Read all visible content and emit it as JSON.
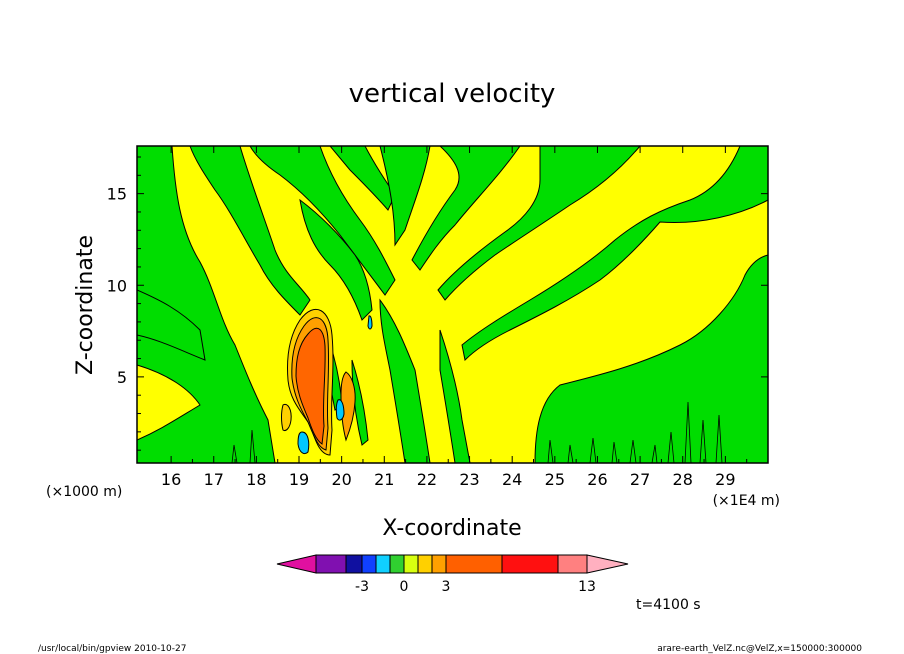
{
  "chart_data": {
    "type": "heatmap",
    "title": "vertical velocity",
    "xlabel": "X-coordinate",
    "ylabel": "Z-coordinate",
    "x_unit_left": "(×1000 m)",
    "x_unit_right": "(×1E4 m)",
    "x_ticks": [
      "16",
      "17",
      "18",
      "19",
      "20",
      "21",
      "22",
      "23",
      "24",
      "25",
      "26",
      "27",
      "28",
      "29"
    ],
    "y_ticks": [
      "5",
      "10",
      "15"
    ],
    "xlim": [
      15.2,
      30.0
    ],
    "ylim": [
      0.3,
      17.6
    ],
    "colorbar": {
      "labels": [
        "-3",
        "0",
        "3",
        "13"
      ],
      "colors": [
        "#e010a0",
        "#8010b0",
        "#1010a0",
        "#1040ff",
        "#10d0ff",
        "#30d030",
        "#d8ff10",
        "#ffd000",
        "#ffa000",
        "#ff6000",
        "#ff1010",
        "#ff8080",
        "#ffb0c0"
      ]
    },
    "background_color": "#ffff00",
    "field_colors": {
      "negative": "#00dd00",
      "core": "#ff6600",
      "blue": "#00c8ff"
    },
    "time_label": "t=4100 s",
    "footer_left": "/usr/local/bin/gpview  2010-10-27",
    "footer_right": "arare-earth_VelZ.nc@VelZ,x=150000:300000"
  }
}
